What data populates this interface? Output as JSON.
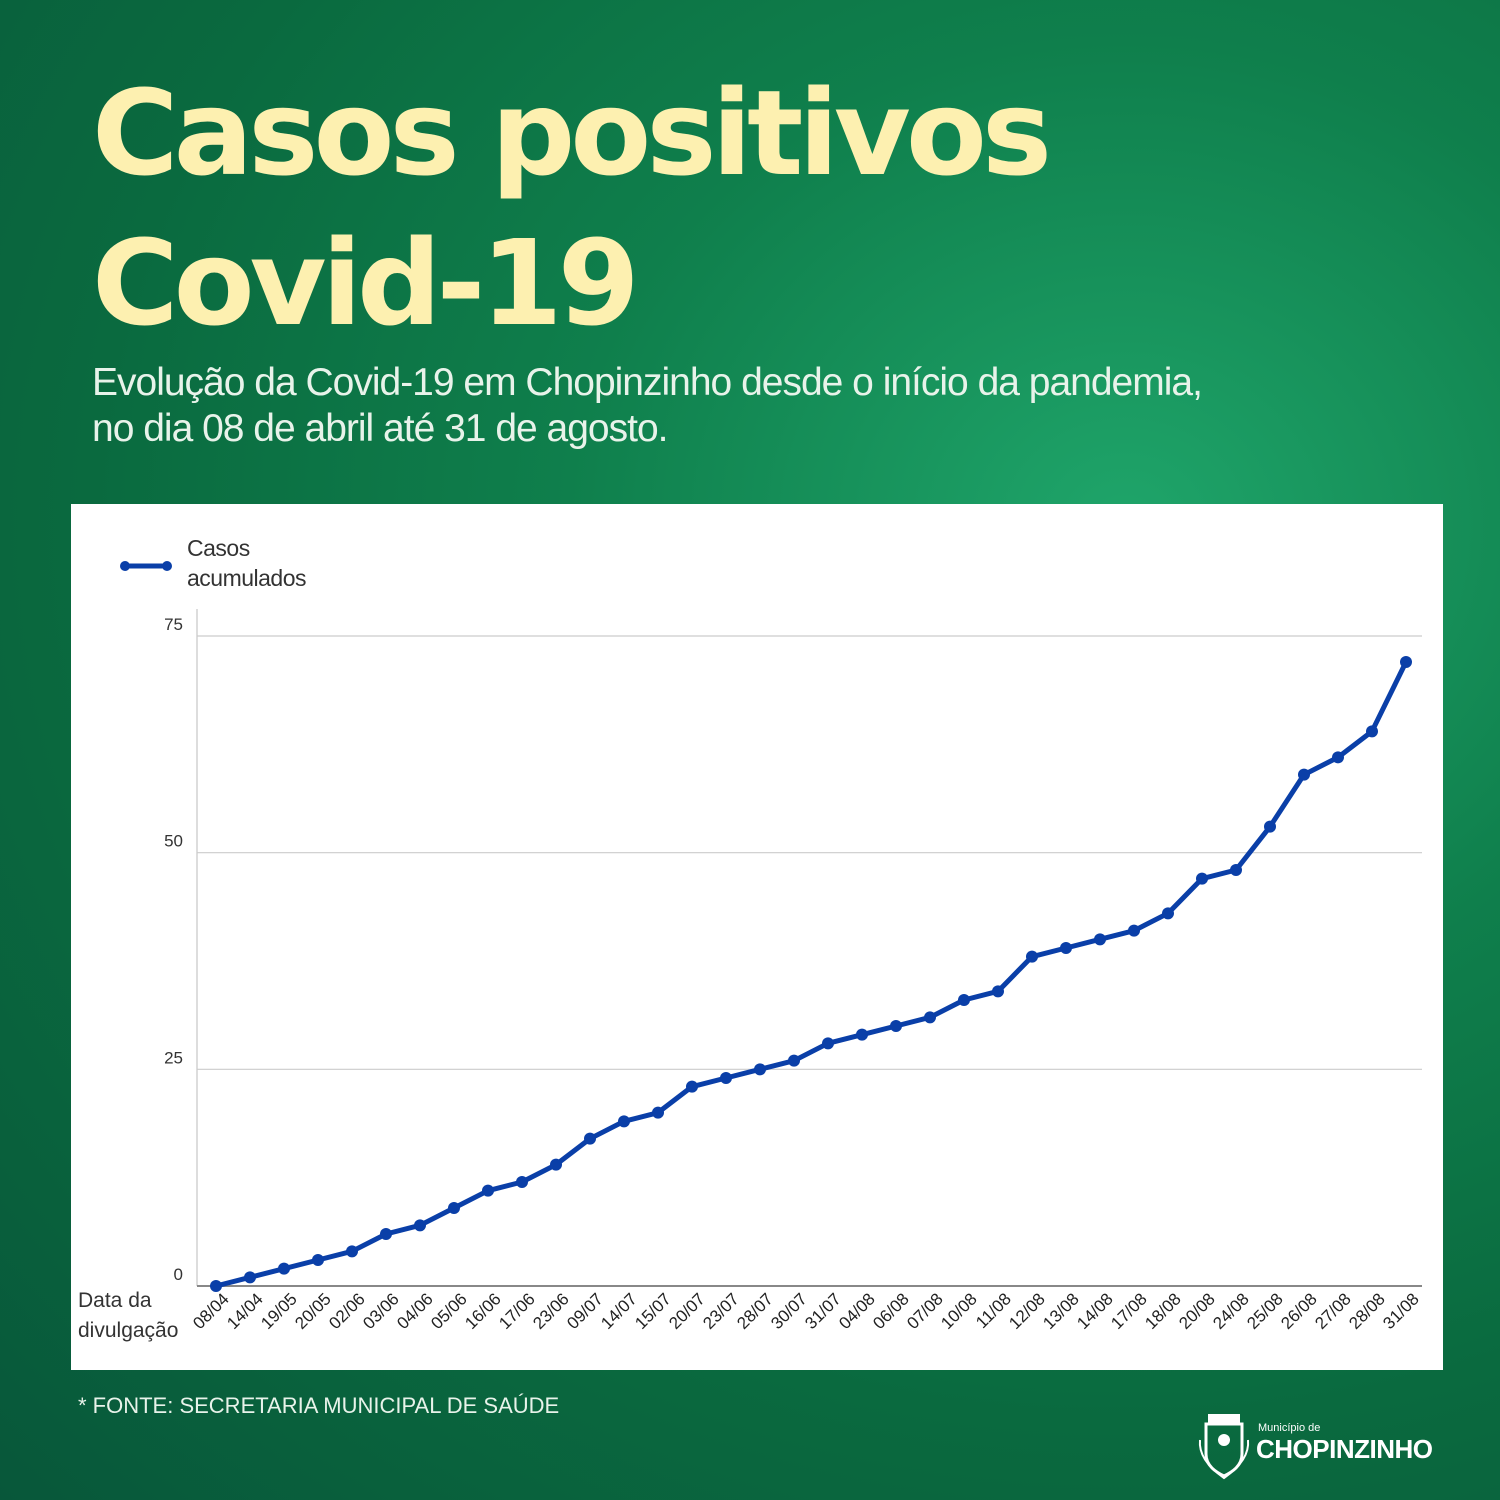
{
  "header": {
    "title_line1": "Casos positivos",
    "title_line2": "Covid-19",
    "subtitle_line1": "Evolução da Covid-19 em Chopinzinho desde o início da pandemia,",
    "subtitle_line2": "no dia 08 de abril até 31 de agosto."
  },
  "footer": {
    "source": "* FONTE: SECRETARIA MUNICIPAL DE SAÚDE",
    "logo_small": "Município de",
    "logo_big": "CHOPINZINHO"
  },
  "colors": {
    "line": "#0a3fa8",
    "title": "#fdf0b0",
    "background": "#0f7f4c"
  },
  "chart_data": {
    "type": "line",
    "xlabel": "Data da divulgação",
    "legend": {
      "position": "top-left",
      "entries": [
        "Casos acumulados"
      ]
    },
    "ylim": [
      0,
      75
    ],
    "yticks": [
      0,
      25,
      50,
      75
    ],
    "grid": true,
    "categories": [
      "08/04",
      "14/04",
      "19/05",
      "20/05",
      "02/06",
      "03/06",
      "04/06",
      "05/06",
      "16/06",
      "17/06",
      "23/06",
      "09/07",
      "14/07",
      "15/07",
      "20/07",
      "23/07",
      "28/07",
      "30/07",
      "31/07",
      "04/08",
      "06/08",
      "07/08",
      "10/08",
      "11/08",
      "12/08",
      "13/08",
      "14/08",
      "17/08",
      "18/08",
      "20/08",
      "24/08",
      "25/08",
      "26/08",
      "27/08",
      "28/08",
      "31/08"
    ],
    "series": [
      {
        "name": "Casos acumulados",
        "values": [
          0,
          1,
          2,
          3,
          4,
          6,
          7,
          9,
          11,
          12,
          14,
          17,
          19,
          20,
          23,
          24,
          25,
          26,
          28,
          29,
          30,
          31,
          33,
          34,
          38,
          39,
          40,
          41,
          43,
          47,
          48,
          53,
          59,
          61,
          64,
          72
        ]
      }
    ]
  }
}
